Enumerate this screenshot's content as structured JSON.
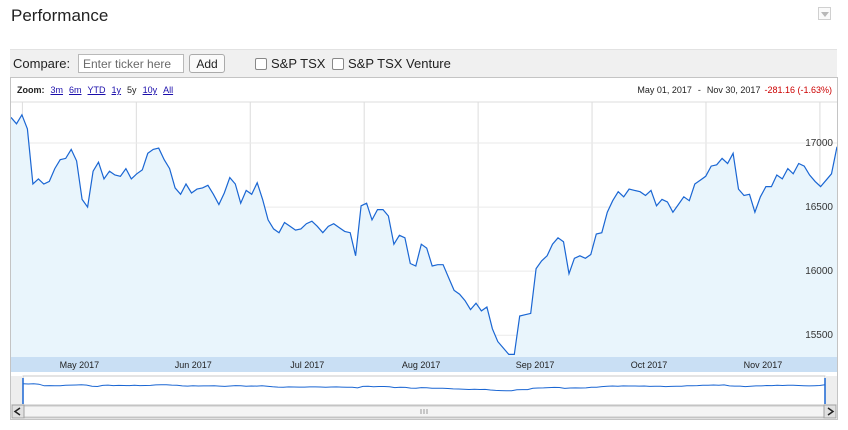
{
  "section": {
    "title": "Performance"
  },
  "compare": {
    "label": "Compare:",
    "placeholder": "Enter ticker here",
    "add_label": "Add",
    "options": [
      {
        "label": "S&P TSX"
      },
      {
        "label": "S&P TSX Venture"
      }
    ]
  },
  "zoom": {
    "label": "Zoom:",
    "options": [
      "3m",
      "6m",
      "YTD",
      "1y",
      "5y",
      "10y",
      "All"
    ],
    "active": "5y"
  },
  "range": {
    "start": "May 01, 2017",
    "separator": "-",
    "end": "Nov 30, 2017",
    "change": "-281.16 (-1.63%)"
  },
  "colors": {
    "line": "#1a66d3",
    "fill": "#e9f5fc",
    "change": "#cc0000",
    "axis_band": "#c9dff4"
  },
  "chart_data": {
    "type": "area",
    "x_labels": [
      "May 2017",
      "Jun 2017",
      "Jul 2017",
      "Aug 2017",
      "Sep 2017",
      "Oct 2017",
      "Nov 2017"
    ],
    "y_ticks": [
      15500,
      16000,
      16500,
      17000
    ],
    "ylim": [
      15330,
      17320
    ],
    "grid": true,
    "series": [
      {
        "values": [
          17200,
          17150,
          17220,
          17110,
          16680,
          16720,
          16680,
          16700,
          16800,
          16870,
          16880,
          16950,
          16860,
          16560,
          16500,
          16780,
          16850,
          16720,
          16780,
          16750,
          16740,
          16800,
          16720,
          16760,
          16790,
          16920,
          16950,
          16960,
          16870,
          16800,
          16650,
          16600,
          16680,
          16610,
          16640,
          16650,
          16670,
          16600,
          16520,
          16610,
          16730,
          16680,
          16530,
          16630,
          16600,
          16690,
          16560,
          16400,
          16330,
          16300,
          16380,
          16350,
          16320,
          16330,
          16370,
          16390,
          16350,
          16300,
          16350,
          16370,
          16340,
          16310,
          16300,
          16120,
          16510,
          16530,
          16400,
          16480,
          16480,
          16430,
          16210,
          16280,
          16260,
          16060,
          16040,
          16210,
          16180,
          16040,
          16050,
          16050,
          15950,
          15850,
          15820,
          15770,
          15700,
          15750,
          15690,
          15720,
          15550,
          15450,
          15400,
          15350,
          15350,
          15650,
          15660,
          15670,
          16020,
          16080,
          16120,
          16210,
          16260,
          16230,
          15980,
          16100,
          16120,
          16100,
          16130,
          16290,
          16300,
          16460,
          16550,
          16620,
          16580,
          16640,
          16630,
          16620,
          16590,
          16630,
          16510,
          16560,
          16540,
          16460,
          16520,
          16580,
          16550,
          16680,
          16710,
          16740,
          16820,
          16830,
          16880,
          16840,
          16920,
          16640,
          16590,
          16600,
          16460,
          16580,
          16660,
          16660,
          16750,
          16720,
          16800,
          16760,
          16840,
          16820,
          16750,
          16700,
          16660,
          16710,
          16760,
          16970
        ]
      }
    ]
  }
}
